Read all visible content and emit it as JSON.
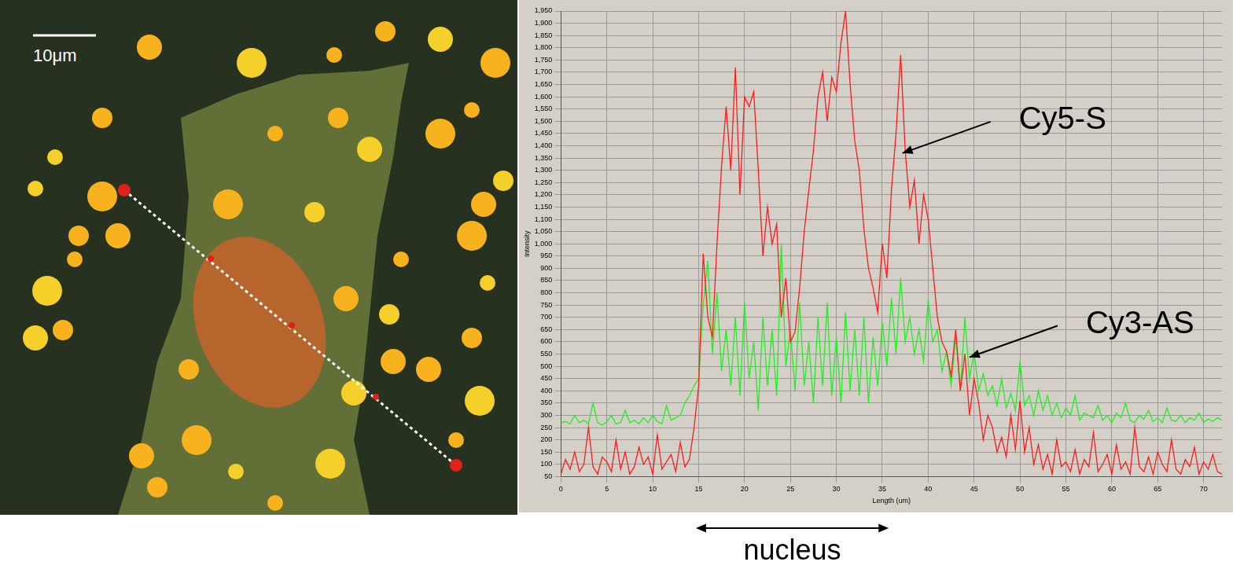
{
  "image": {
    "scale_bar": "10μm"
  },
  "chart_data": {
    "type": "line",
    "x_label": "Length (um)",
    "y_label": "Intensity",
    "xlim": [
      0,
      72
    ],
    "xticks": [
      0,
      5,
      10,
      15,
      20,
      25,
      30,
      35,
      40,
      45,
      50,
      55,
      60,
      65,
      70
    ],
    "ylim": [
      50,
      1950
    ],
    "yticks": [
      50,
      100,
      150,
      200,
      250,
      300,
      350,
      400,
      450,
      500,
      550,
      600,
      650,
      700,
      750,
      800,
      850,
      900,
      950,
      {
        "value": 1000,
        "label": "1,000"
      },
      {
        "value": 1050,
        "label": "1,050"
      },
      {
        "value": 1100,
        "label": "1,100"
      },
      {
        "value": 1150,
        "label": "1,150"
      },
      {
        "value": 1200,
        "label": "1,200"
      },
      {
        "value": 1250,
        "label": "1,250"
      },
      {
        "value": 1300,
        "label": "1,300"
      },
      {
        "value": 1350,
        "label": "1,350"
      },
      {
        "value": 1400,
        "label": "1,400"
      },
      {
        "value": 1450,
        "label": "1,450"
      },
      {
        "value": 1500,
        "label": "1,500"
      },
      {
        "value": 1550,
        "label": "1,550"
      },
      {
        "value": 1600,
        "label": "1,600"
      },
      {
        "value": 1650,
        "label": "1,650"
      },
      {
        "value": 1700,
        "label": "1,700"
      },
      {
        "value": 1750,
        "label": "1,750"
      },
      {
        "value": 1800,
        "label": "1,800"
      },
      {
        "value": 1850,
        "label": "1,850"
      },
      {
        "value": 1900,
        "label": "1,900"
      },
      {
        "value": 1950,
        "label": "1,950"
      }
    ],
    "grid": true,
    "x": [
      0,
      0.5,
      1,
      1.5,
      2,
      2.5,
      3,
      3.5,
      4,
      4.5,
      5,
      5.5,
      6,
      6.5,
      7,
      7.5,
      8,
      8.5,
      9,
      9.5,
      10,
      10.5,
      11,
      11.5,
      12,
      12.5,
      13,
      13.5,
      14,
      14.5,
      15,
      15.5,
      16,
      16.5,
      17,
      17.5,
      18,
      18.5,
      19,
      19.5,
      20,
      20.5,
      21,
      21.5,
      22,
      22.5,
      23,
      23.5,
      24,
      24.5,
      25,
      25.5,
      26,
      26.5,
      27,
      27.5,
      28,
      28.5,
      29,
      29.5,
      30,
      30.5,
      31,
      31.5,
      32,
      32.5,
      33,
      33.5,
      34,
      34.5,
      35,
      35.5,
      36,
      36.5,
      37,
      37.5,
      38,
      38.5,
      39,
      39.5,
      40,
      40.5,
      41,
      41.5,
      42,
      42.5,
      43,
      43.5,
      44,
      44.5,
      45,
      45.5,
      46,
      46.5,
      47,
      47.5,
      48,
      48.5,
      49,
      49.5,
      50,
      50.5,
      51,
      51.5,
      52,
      52.5,
      53,
      53.5,
      54,
      54.5,
      55,
      55.5,
      56,
      56.5,
      57,
      57.5,
      58,
      58.5,
      59,
      59.5,
      60,
      60.5,
      61,
      61.5,
      62,
      62.5,
      63,
      63.5,
      64,
      64.5,
      65,
      65.5,
      66,
      66.5,
      67,
      67.5,
      68,
      68.5,
      69,
      69.5,
      70,
      70.5,
      71,
      71.5,
      72
    ],
    "series": [
      {
        "name": "Cy5-S",
        "color": "#ff1a1a",
        "values": [
          60,
          120,
          80,
          150,
          70,
          100,
          250,
          90,
          60,
          130,
          110,
          70,
          200,
          80,
          150,
          60,
          90,
          170,
          100,
          130,
          60,
          220,
          80,
          110,
          140,
          70,
          190,
          90,
          120,
          250,
          420,
          960,
          700,
          620,
          1000,
          1320,
          1560,
          1300,
          1720,
          1200,
          1600,
          1560,
          1620,
          1300,
          950,
          1150,
          1000,
          1080,
          700,
          860,
          600,
          640,
          820,
          1050,
          1220,
          1380,
          1600,
          1700,
          1500,
          1680,
          1620,
          1820,
          1950,
          1650,
          1420,
          1300,
          1060,
          900,
          820,
          720,
          1000,
          860,
          1220,
          1450,
          1770,
          1380,
          1150,
          1260,
          1000,
          1200,
          1100,
          900,
          700,
          600,
          560,
          460,
          650,
          400,
          550,
          300,
          450,
          350,
          200,
          300,
          250,
          150,
          210,
          130,
          300,
          160,
          360,
          150,
          250,
          100,
          180,
          80,
          140,
          60,
          200,
          90,
          110,
          70,
          160,
          60,
          120,
          90,
          230,
          70,
          100,
          140,
          60,
          180,
          80,
          110,
          60,
          250,
          90,
          70,
          130,
          60,
          150,
          100,
          70,
          200,
          80,
          60,
          120,
          90,
          170,
          60,
          110,
          80,
          140,
          70,
          60
        ]
      },
      {
        "name": "Cy3-AS",
        "color": "#22ee22",
        "values": [
          270,
          275,
          265,
          300,
          270,
          280,
          265,
          350,
          270,
          260,
          275,
          300,
          265,
          270,
          320,
          270,
          280,
          265,
          290,
          270,
          300,
          275,
          265,
          340,
          280,
          290,
          300,
          350,
          380,
          420,
          450,
          750,
          930,
          550,
          800,
          480,
          650,
          420,
          700,
          380,
          760,
          450,
          600,
          320,
          700,
          420,
          650,
          380,
          1000,
          500,
          650,
          400,
          760,
          420,
          600,
          350,
          700,
          420,
          760,
          380,
          620,
          350,
          720,
          400,
          650,
          380,
          700,
          350,
          620,
          420,
          680,
          500,
          780,
          550,
          860,
          600,
          700,
          550,
          650,
          520,
          770,
          600,
          650,
          480,
          560,
          420,
          620,
          400,
          700,
          450,
          560,
          400,
          470,
          380,
          420,
          340,
          450,
          330,
          390,
          320,
          520,
          340,
          380,
          300,
          400,
          320,
          380,
          300,
          350,
          290,
          330,
          300,
          380,
          280,
          310,
          300,
          290,
          340,
          280,
          300,
          270,
          310,
          290,
          350,
          280,
          270,
          300,
          285,
          320,
          275,
          290,
          270,
          330,
          280,
          275,
          300,
          270,
          290,
          280,
          310,
          270,
          285,
          275,
          290,
          280
        ]
      }
    ],
    "annotations": [
      {
        "text": "Cy5-S",
        "x": 37.2,
        "y": 1370
      },
      {
        "text": "Cy3-AS",
        "x": 44.5,
        "y": 537
      }
    ],
    "span": {
      "text": "nucleus",
      "x": [
        14.7,
        35.7
      ]
    }
  }
}
